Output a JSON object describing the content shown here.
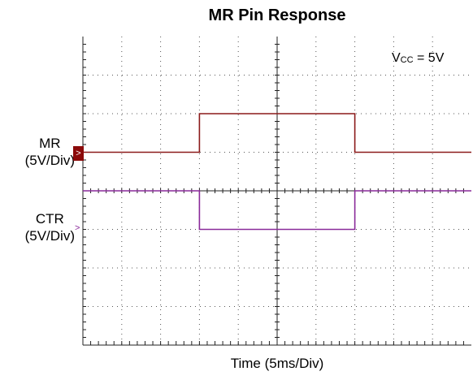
{
  "chart_data": {
    "type": "line",
    "title": "MR Pin Response",
    "xlabel": "Time (5ms/Div)",
    "annotation": {
      "main": "V",
      "sub": "CC",
      "rest": " = 5V"
    },
    "channels": [
      {
        "label_line1": "MR",
        "label_line2": "(5V/Div)",
        "color": "#8b1a1a"
      },
      {
        "label_line1": "CTR",
        "label_line2": "(5V/Div)",
        "color": "#8a2a9a"
      }
    ],
    "grid": true,
    "divisions": {
      "x": 10,
      "y": 8
    },
    "series": [
      {
        "name": "MR",
        "color": "#8b1a1a",
        "x_div": [
          0,
          3.0,
          3.0,
          7.0,
          7.0,
          10
        ],
        "y_div": [
          5.0,
          5.0,
          6.0,
          6.0,
          5.0,
          5.0
        ]
      },
      {
        "name": "CTR",
        "color": "#8a2a9a",
        "x_div": [
          0,
          3.0,
          3.0,
          7.0,
          7.0,
          10
        ],
        "y_div": [
          4.0,
          4.0,
          3.0,
          3.0,
          4.0,
          4.0
        ]
      }
    ]
  }
}
